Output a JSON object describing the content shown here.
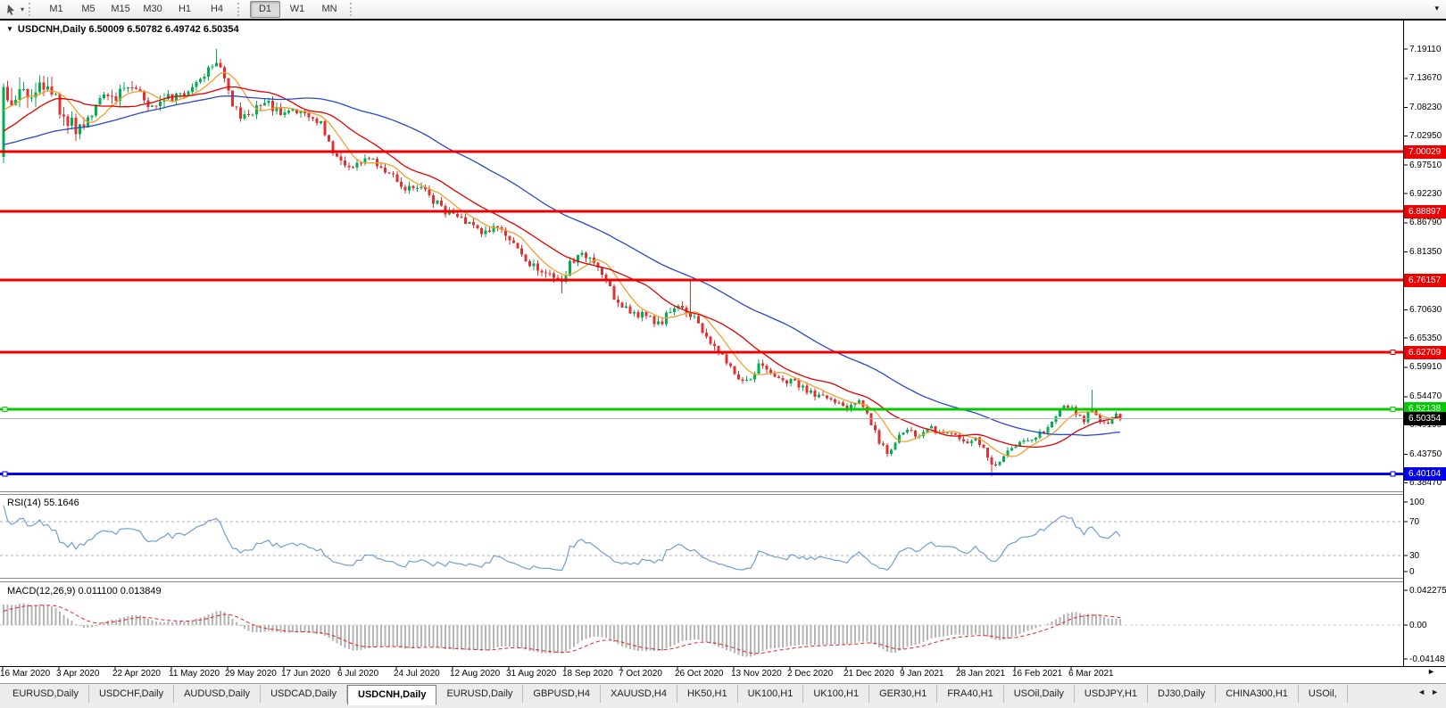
{
  "toolbar": {
    "timeframes": [
      "M1",
      "M5",
      "M15",
      "M30",
      "H1",
      "H4",
      "D1",
      "W1",
      "MN"
    ],
    "active_timeframe": "D1",
    "overflow_icon": "▾"
  },
  "icons": {
    "title_caret": "▼",
    "cursor_tool": "cursor-arrow",
    "dropdown_caret": "▾",
    "axis_end_arrow": "►",
    "tab_scroll_left": "◄",
    "tab_scroll_right": "►"
  },
  "chart_data": {
    "type": "candlestick",
    "symbol": "USDCNH",
    "timeframe": "Daily",
    "title": {
      "symbol": "USDCNH,Daily",
      "ohlc": "6.50009 6.50782 6.49742 6.50354"
    },
    "ohlc_values": {
      "open": 6.50009,
      "high": 6.50782,
      "low": 6.49742,
      "close": 6.50354
    },
    "candle_colors": {
      "up": "#00b050",
      "down": "#e03030"
    },
    "x_axis": {
      "labels": [
        "16 Mar 2020",
        "3 Apr 2020",
        "22 Apr 2020",
        "11 May 2020",
        "29 May 2020",
        "17 Jun 2020",
        "6 Jul 2020",
        "24 Jul 2020",
        "12 Aug 2020",
        "31 Aug 2020",
        "18 Sep 2020",
        "7 Oct 2020",
        "26 Oct 2020",
        "13 Nov 2020",
        "2 Dec 2020",
        "21 Dec 2020",
        "9 Jan 2021",
        "28 Jan 2021",
        "16 Feb 2021",
        "6 Mar 2021"
      ]
    },
    "y_axis": {
      "labels": [
        "7.19110",
        "7.13670",
        "7.08230",
        "7.02950",
        "6.97510",
        "6.92230",
        "6.86790",
        "6.81350",
        "6.70630",
        "6.65350",
        "6.59910",
        "6.54470",
        "6.49190",
        "6.43750",
        "6.38470"
      ]
    },
    "badges": [
      {
        "label": "7.00029",
        "color": "#ee0000"
      },
      {
        "label": "6.88897",
        "color": "#ee0000"
      },
      {
        "label": "6.76157",
        "color": "#ee0000"
      },
      {
        "label": "6.62709",
        "color": "#ee0000"
      },
      {
        "label": "6.52138",
        "color": "#00cc00"
      },
      {
        "label": "6.50354",
        "color": "#000000"
      },
      {
        "label": "6.40104",
        "color": "#0000ee"
      }
    ],
    "hlines": [
      {
        "price": 7.00029,
        "color": "#ee0000",
        "width": 3,
        "handles": []
      },
      {
        "price": 6.88897,
        "color": "#ee0000",
        "width": 3,
        "handles": []
      },
      {
        "price": 6.76157,
        "color": "#ee0000",
        "width": 3,
        "handles": []
      },
      {
        "price": 6.62709,
        "color": "#ee0000",
        "width": 3,
        "handles": [
          "right"
        ]
      },
      {
        "price": 6.52138,
        "color": "#00cc00",
        "width": 3,
        "handles": [
          "left",
          "right"
        ]
      },
      {
        "price": 6.50354,
        "color": "#b4b4b4",
        "width": 1,
        "handles": []
      },
      {
        "price": 6.40104,
        "color": "#0000ee",
        "width": 3,
        "handles": [
          "left",
          "right"
        ]
      }
    ],
    "moving_averages": [
      {
        "period": 8,
        "color": "#f0a030"
      },
      {
        "period": 20,
        "color": "#e00000"
      },
      {
        "period": 55,
        "color": "#2b48c8"
      }
    ],
    "rsi": {
      "label": "RSI(14) 55.1646",
      "period": 14,
      "last_value": 55.1646,
      "levels": [
        "100",
        "70",
        "30",
        "0"
      ],
      "line_color": "#6f9fd2",
      "level_line_color": "#b0b0b0"
    },
    "macd": {
      "label": "MACD(12,26,9) 0.011100 0.013849",
      "fast": 12,
      "slow": 26,
      "signal": 9,
      "value": 0.0111,
      "signal_value": 0.013849,
      "axis_labels": [
        {
          "text": "0.042275",
          "value": 0.042275
        },
        {
          "text": "0.00",
          "value": 0
        },
        {
          "text": "-0.04148",
          "value": -0.04148
        }
      ],
      "histogram_color": "#b4b4b4",
      "signal_color": "#e02020"
    },
    "series": {
      "bar_count": 279,
      "bar_spacing": 4.5,
      "first_open": 6.99,
      "warmup": {
        "bars": 90,
        "base": 7.0,
        "ramp_to": 7.1,
        "ramp_bars": 14
      },
      "close_anchors": [
        [
          4,
          7.12
        ],
        [
          14,
          7.09
        ],
        [
          23,
          7.14
        ],
        [
          32,
          7.1
        ],
        [
          41,
          7.13
        ],
        [
          50,
          7.1
        ],
        [
          59,
          7.12
        ],
        [
          70,
          7.07
        ],
        [
          85,
          7.04
        ],
        [
          95,
          7.06
        ],
        [
          110,
          7.09
        ],
        [
          125,
          7.1
        ],
        [
          140,
          7.12
        ],
        [
          150,
          7.13
        ],
        [
          160,
          7.1
        ],
        [
          170,
          7.08
        ],
        [
          185,
          7.11
        ],
        [
          200,
          7.1
        ],
        [
          215,
          7.12
        ],
        [
          230,
          7.15
        ],
        [
          243,
          7.175
        ],
        [
          252,
          7.14
        ],
        [
          262,
          7.08
        ],
        [
          272,
          7.06
        ],
        [
          285,
          7.08
        ],
        [
          300,
          7.09
        ],
        [
          315,
          7.07
        ],
        [
          330,
          7.08
        ],
        [
          345,
          7.065
        ],
        [
          360,
          7.05
        ],
        [
          370,
          7.01
        ],
        [
          380,
          6.985
        ],
        [
          395,
          6.97
        ],
        [
          410,
          6.99
        ],
        [
          425,
          6.975
        ],
        [
          440,
          6.96
        ],
        [
          455,
          6.93
        ],
        [
          470,
          6.94
        ],
        [
          485,
          6.91
        ],
        [
          500,
          6.89
        ],
        [
          515,
          6.875
        ],
        [
          530,
          6.86
        ],
        [
          545,
          6.85
        ],
        [
          555,
          6.862
        ],
        [
          570,
          6.84
        ],
        [
          585,
          6.8
        ],
        [
          600,
          6.79
        ],
        [
          615,
          6.77
        ],
        [
          628,
          6.75
        ],
        [
          638,
          6.79
        ],
        [
          650,
          6.81
        ],
        [
          662,
          6.8
        ],
        [
          675,
          6.77
        ],
        [
          688,
          6.73
        ],
        [
          700,
          6.71
        ],
        [
          712,
          6.7
        ],
        [
          725,
          6.69
        ],
        [
          738,
          6.68
        ],
        [
          750,
          6.7
        ],
        [
          762,
          6.71
        ],
        [
          775,
          6.695
        ],
        [
          788,
          6.665
        ],
        [
          800,
          6.64
        ],
        [
          812,
          6.615
        ],
        [
          825,
          6.585
        ],
        [
          838,
          6.57
        ],
        [
          850,
          6.6
        ],
        [
          862,
          6.59
        ],
        [
          875,
          6.57
        ],
        [
          888,
          6.58
        ],
        [
          900,
          6.56
        ],
        [
          912,
          6.55
        ],
        [
          925,
          6.545
        ],
        [
          938,
          6.53
        ],
        [
          950,
          6.525
        ],
        [
          962,
          6.54
        ],
        [
          975,
          6.5
        ],
        [
          985,
          6.46
        ],
        [
          995,
          6.44
        ],
        [
          1005,
          6.47
        ],
        [
          1018,
          6.48
        ],
        [
          1030,
          6.47
        ],
        [
          1042,
          6.49
        ],
        [
          1055,
          6.47
        ],
        [
          1068,
          6.48
        ],
        [
          1080,
          6.46
        ],
        [
          1092,
          6.47
        ],
        [
          1105,
          6.44
        ],
        [
          1112,
          6.41
        ],
        [
          1120,
          6.42
        ],
        [
          1132,
          6.45
        ],
        [
          1145,
          6.46
        ],
        [
          1158,
          6.47
        ],
        [
          1170,
          6.48
        ],
        [
          1182,
          6.51
        ],
        [
          1195,
          6.53
        ],
        [
          1205,
          6.515
        ],
        [
          1215,
          6.5
        ],
        [
          1222,
          6.53
        ],
        [
          1230,
          6.5
        ],
        [
          1240,
          6.49
        ],
        [
          1248,
          6.51
        ],
        [
          1255,
          6.5035
        ]
      ],
      "volatility_anchors": [
        [
          4,
          0.05
        ],
        [
          40,
          0.04
        ],
        [
          120,
          0.028
        ],
        [
          240,
          0.02
        ],
        [
          400,
          0.016
        ],
        [
          600,
          0.018
        ],
        [
          800,
          0.016
        ],
        [
          1000,
          0.013
        ],
        [
          1255,
          0.011
        ]
      ],
      "spikes": [
        {
          "x": 243,
          "high": 7.1911
        },
        {
          "x": 628,
          "low": 6.737
        },
        {
          "x": 775,
          "high": 6.7616
        },
        {
          "x": 995,
          "low": 6.432
        },
        {
          "x": 1112,
          "low": 6.397
        },
        {
          "x": 1222,
          "high": 6.558
        }
      ]
    }
  },
  "tabs": {
    "items": [
      "EURUSD,Daily",
      "USDCHF,Daily",
      "AUDUSD,Daily",
      "USDCAD,Daily",
      "USDCNH,Daily",
      "EURUSD,Daily",
      "GBPUSD,H4",
      "XAUUSD,H4",
      "HK50,H1",
      "UK100,H1",
      "UK100,H1",
      "GER30,H1",
      "FRA40,H1",
      "USOil,Daily",
      "USDJPY,H1",
      "DJ30,Daily",
      "CHINA300,H1",
      "USOil,"
    ],
    "active_index": 4
  }
}
